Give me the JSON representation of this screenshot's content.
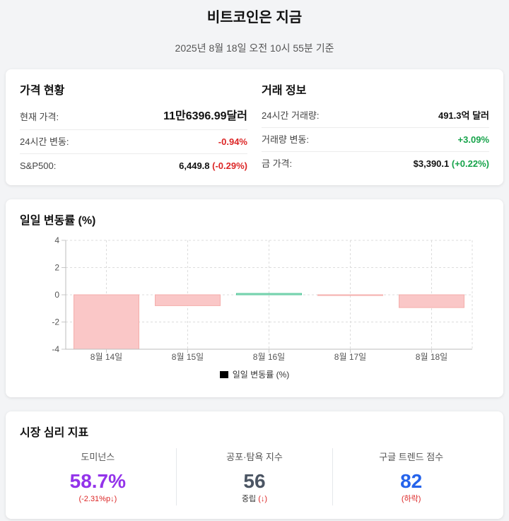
{
  "header": {
    "title": "비트코인은 지금",
    "timestamp": "2025년 8월 18일 오전 10시 55분 기준"
  },
  "price_status": {
    "heading": "가격 현황",
    "current_price": {
      "label": "현재 가격:",
      "value": "11만6396.99달러"
    },
    "change_24h": {
      "label": "24시간 변동:",
      "value": "-0.94%"
    },
    "sp500": {
      "label": "S&P500:",
      "value": "6,449.8",
      "change": "(-0.29%)"
    }
  },
  "trade_info": {
    "heading": "거래 정보",
    "volume_24h": {
      "label": "24시간 거래량:",
      "value": "491.3억 달러"
    },
    "volume_change": {
      "label": "거래량 변동:",
      "value": "+3.09%"
    },
    "gold_price": {
      "label": "금 가격:",
      "value": "$3,390.1",
      "change": "(+0.22%)"
    }
  },
  "daily_chart": {
    "heading": "일일 변동률 (%)"
  },
  "chart_data": {
    "type": "bar",
    "categories": [
      "8월 14일",
      "8월 15일",
      "8월 16일",
      "8월 17일",
      "8월 18일"
    ],
    "series": [
      {
        "name": "일일 변동률 (%)",
        "values": [
          -4.0,
          -0.8,
          0.1,
          -0.05,
          -0.94
        ]
      }
    ],
    "ylim": [
      -4,
      4
    ],
    "yticks": [
      4,
      2,
      0,
      -2,
      -4
    ],
    "grid": true,
    "legend": "bottom",
    "colors": {
      "negative_fill": "#fac7c7",
      "negative_border": "#f4aeab",
      "positive_fill": "#a9e4cb",
      "positive_border": "#4cc495",
      "legend_swatch": "#000000"
    }
  },
  "sentiment": {
    "heading": "시장 심리 지표",
    "dominance": {
      "label": "도미넌스",
      "value": "58.7%",
      "change": "(-2.31%p↓)"
    },
    "fear_greed": {
      "label": "공포·탐욕 지수",
      "value": "56",
      "status": "중립",
      "change": "(↓)"
    },
    "google_trends": {
      "label": "구글 트렌드 점수",
      "value": "82",
      "change": "(하락)"
    }
  },
  "colors": {
    "negative": "#dc2626",
    "positive": "#16a34a",
    "dominance": "#9333ea",
    "fear_greed": "#4b5563",
    "google_trends": "#2563eb"
  }
}
